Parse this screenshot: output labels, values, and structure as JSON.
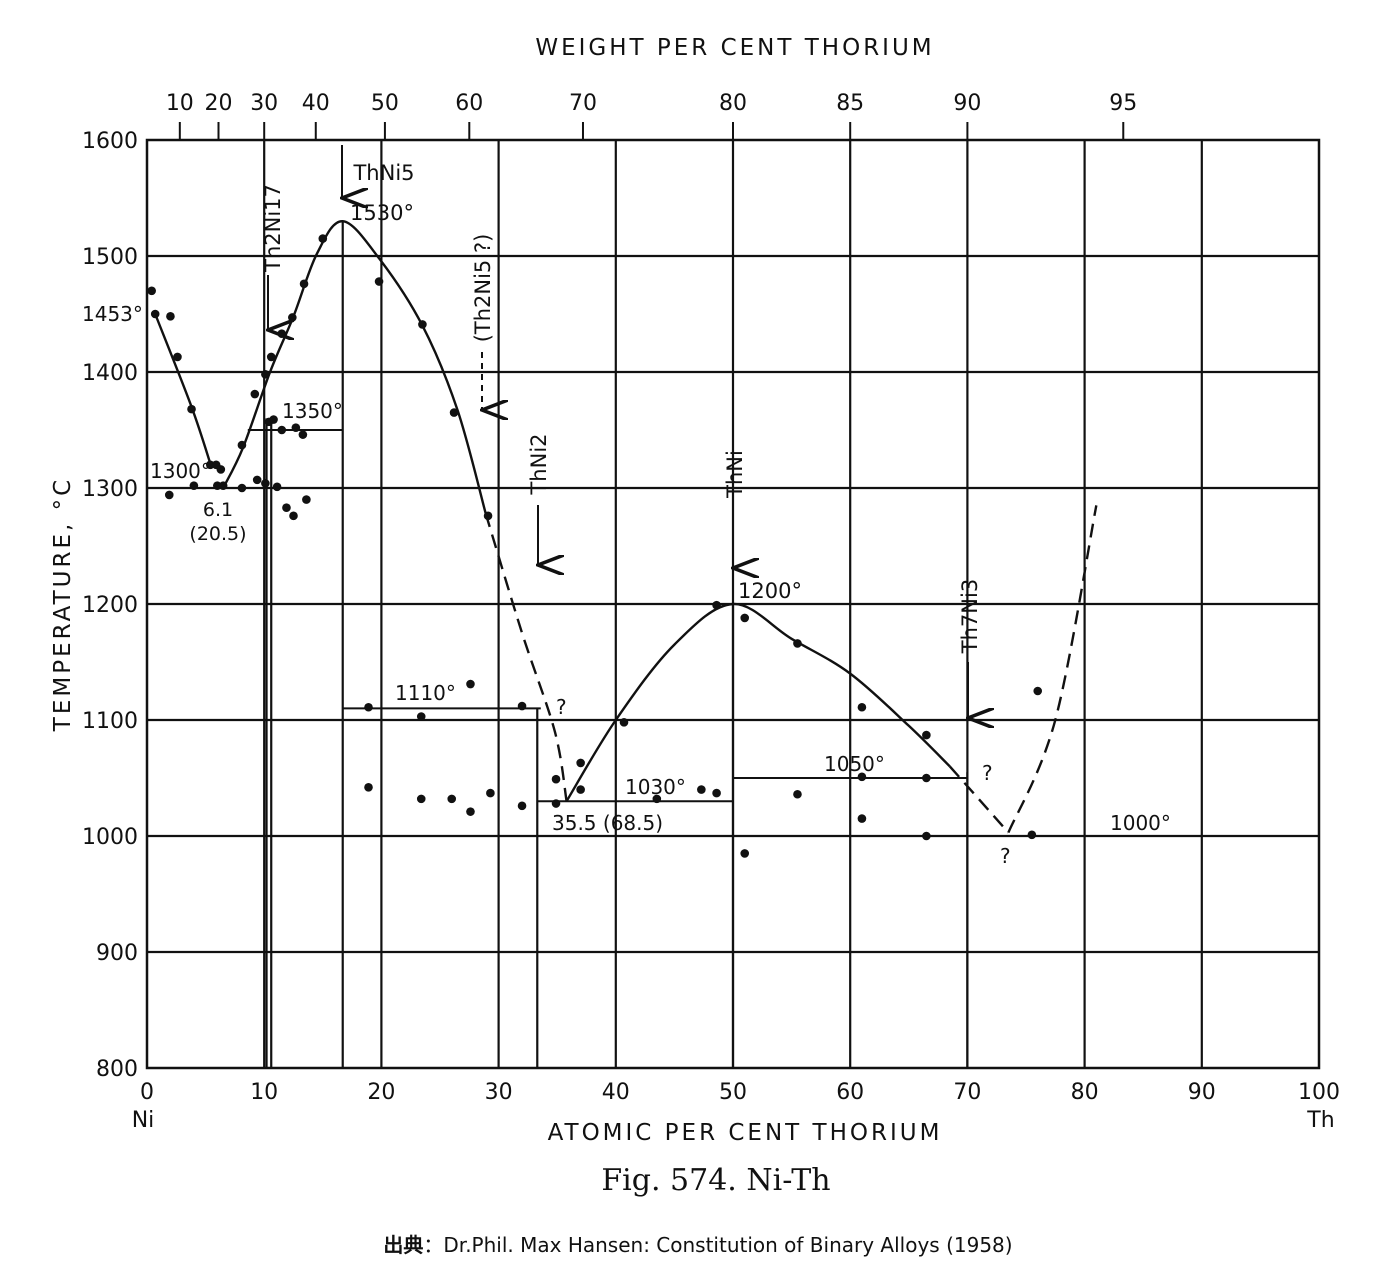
{
  "chart_data": {
    "type": "scatter",
    "title": "Fig. 574. Ni-Th",
    "xlabel": "ATOMIC PER CENT THORIUM",
    "x2label": "WEIGHT PER CENT THORIUM",
    "ylabel": "TEMPERATURE, °C",
    "xlim": [
      0,
      100
    ],
    "ylim": [
      800,
      1600
    ],
    "x_ticks": [
      "0",
      "10",
      "20",
      "30",
      "40",
      "50",
      "60",
      "70",
      "80",
      "90",
      "100"
    ],
    "x_end_labels": [
      "Ni",
      "Th"
    ],
    "y_ticks": [
      "800",
      "900",
      "1000",
      "1100",
      "1200",
      "1300",
      "1400",
      "1500",
      "1600"
    ],
    "weight_ticks": [
      {
        "label": "10",
        "at": 2.8
      },
      {
        "label": "20",
        "at": 6.1
      },
      {
        "label": "30",
        "at": 10.0
      },
      {
        "label": "40",
        "at": 14.4
      },
      {
        "label": "50",
        "at": 20.3
      },
      {
        "label": "60",
        "at": 27.5
      },
      {
        "label": "70",
        "at": 37.2
      },
      {
        "label": "80",
        "at": 50.0
      },
      {
        "label": "85",
        "at": 60.0
      },
      {
        "label": "90",
        "at": 70.0
      },
      {
        "label": "95",
        "at": 83.3
      }
    ],
    "grid": true,
    "liquidus_solid": [
      [
        [
          0.7,
          1450
        ],
        [
          3.8,
          1370
        ],
        [
          5.5,
          1318
        ]
      ],
      [
        [
          6.5,
          1300
        ],
        [
          8.2,
          1335
        ],
        [
          10.5,
          1400
        ],
        [
          12.5,
          1448
        ],
        [
          14.5,
          1502
        ],
        [
          16.7,
          1530
        ],
        [
          19.8,
          1498
        ],
        [
          23.5,
          1440
        ],
        [
          26.5,
          1367
        ],
        [
          28.9,
          1278
        ]
      ],
      [
        [
          35.8,
          1030
        ],
        [
          40.0,
          1100
        ],
        [
          45.0,
          1165
        ],
        [
          50.0,
          1200
        ],
        [
          55.0,
          1170
        ],
        [
          60.0,
          1140
        ],
        [
          65.0,
          1095
        ],
        [
          68.5,
          1060
        ]
      ]
    ],
    "liquidus_dashed": [
      [
        [
          28.9,
          1278
        ],
        [
          32.0,
          1175
        ],
        [
          34.8,
          1090
        ],
        [
          35.8,
          1030
        ]
      ],
      [
        [
          68.5,
          1060
        ],
        [
          73.5,
          1003
        ]
      ],
      [
        [
          73.5,
          1003
        ],
        [
          77.5,
          1100
        ],
        [
          81.0,
          1285
        ]
      ]
    ],
    "horizontals": [
      {
        "x1": 0,
        "x2": 10.5,
        "y": 1300
      },
      {
        "x1": 8.6,
        "x2": 16.7,
        "y": 1350
      },
      {
        "x1": 16.7,
        "x2": 33.6,
        "y": 1110
      },
      {
        "x1": 33.3,
        "x2": 50.0,
        "y": 1030
      },
      {
        "x1": 50.0,
        "x2": 70.0,
        "y": 1050
      },
      {
        "x1": 73.5,
        "x2": 100,
        "y": 1000
      }
    ],
    "verticals": [
      {
        "x": 10.2,
        "y1": 800,
        "y2": 1360
      },
      {
        "x": 10.6,
        "y1": 800,
        "y2": 1360
      },
      {
        "x": 16.7,
        "y1": 800,
        "y2": 1530
      },
      {
        "x": 33.3,
        "y1": 800,
        "y2": 1110
      },
      {
        "x": 50.0,
        "y1": 800,
        "y2": 1200
      },
      {
        "x": 70.0,
        "y1": 800,
        "y2": 1055
      }
    ],
    "data_points": [
      [
        0.4,
        1470
      ],
      [
        0.7,
        1450
      ],
      [
        2.0,
        1448
      ],
      [
        2.6,
        1413
      ],
      [
        3.8,
        1368
      ],
      [
        5.4,
        1320
      ],
      [
        5.9,
        1320
      ],
      [
        6.3,
        1316
      ],
      [
        6.0,
        1302
      ],
      [
        6.5,
        1302
      ],
      [
        8.1,
        1337
      ],
      [
        9.2,
        1381
      ],
      [
        10.1,
        1398
      ],
      [
        10.6,
        1413
      ],
      [
        11.5,
        1433
      ],
      [
        12.4,
        1447
      ],
      [
        13.4,
        1476
      ],
      [
        15.0,
        1515
      ],
      [
        19.8,
        1478
      ],
      [
        23.5,
        1441
      ],
      [
        26.2,
        1365
      ],
      [
        29.1,
        1276
      ],
      [
        1.9,
        1294
      ],
      [
        4.0,
        1302
      ],
      [
        8.1,
        1300
      ],
      [
        9.4,
        1307
      ],
      [
        10.1,
        1304
      ],
      [
        11.1,
        1301
      ],
      [
        10.4,
        1357
      ],
      [
        10.8,
        1359
      ],
      [
        11.5,
        1350
      ],
      [
        12.7,
        1352
      ],
      [
        13.3,
        1346
      ],
      [
        11.9,
        1283
      ],
      [
        12.5,
        1276
      ],
      [
        13.6,
        1290
      ],
      [
        18.9,
        1111
      ],
      [
        23.4,
        1103
      ],
      [
        27.6,
        1131
      ],
      [
        32.0,
        1112
      ],
      [
        18.9,
        1042
      ],
      [
        23.4,
        1032
      ],
      [
        26.0,
        1032
      ],
      [
        27.6,
        1021
      ],
      [
        29.3,
        1037
      ],
      [
        32.0,
        1026
      ],
      [
        34.9,
        1049
      ],
      [
        34.9,
        1028
      ],
      [
        37.0,
        1063
      ],
      [
        37.0,
        1040
      ],
      [
        40.7,
        1098
      ],
      [
        43.5,
        1032
      ],
      [
        47.3,
        1040
      ],
      [
        48.6,
        1199
      ],
      [
        48.6,
        1037
      ],
      [
        51.0,
        1188
      ],
      [
        51.0,
        985
      ],
      [
        55.5,
        1166
      ],
      [
        55.5,
        1036
      ],
      [
        61.0,
        1111
      ],
      [
        61.0,
        1051
      ],
      [
        61.0,
        1015
      ],
      [
        66.5,
        1087
      ],
      [
        66.5,
        1050
      ],
      [
        66.5,
        1000
      ],
      [
        75.5,
        1001
      ],
      [
        76.0,
        1125
      ]
    ],
    "annotations": [
      "1453°",
      "1300°",
      "6.1",
      "(20.5)",
      "1350°",
      "1530°",
      "1110°",
      "?",
      "1030°",
      "35.5 (68.5)",
      "1200°",
      "1050°",
      "?",
      "1000°",
      "?"
    ],
    "phases": [
      "Th2Ni17",
      "ThNi5",
      "(Th2Ni5 ?)",
      "ThNi2",
      "ThNi",
      "Th7Ni3"
    ]
  },
  "source_prefix": "出典",
  "source": "：Dr.Phil. Max Hansen: Constitution of Binary Alloys (1958)"
}
